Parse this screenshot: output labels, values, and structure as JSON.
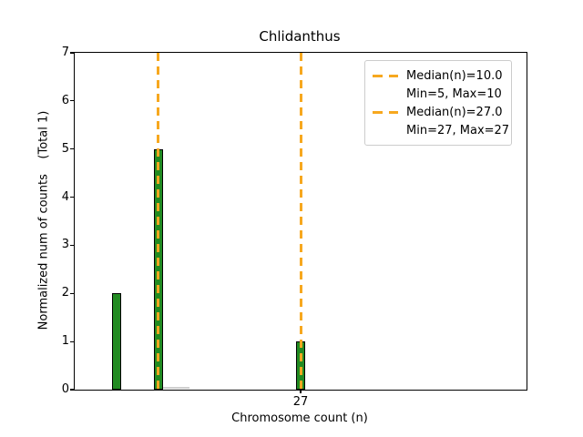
{
  "chart_data": {
    "type": "bar",
    "title": "Chlidanthus",
    "xlabel": "Chromosome count (n)",
    "ylabel": "Normalized num of counts    (Total 1)",
    "xlim": [
      0,
      54
    ],
    "ylim": [
      0,
      7
    ],
    "yticks": [
      0,
      1,
      2,
      3,
      4,
      5,
      6,
      7
    ],
    "xticks": [
      27
    ],
    "grid": false,
    "bars": [
      {
        "x": 5,
        "height": 2
      },
      {
        "x": 10,
        "height": 5
      },
      {
        "x": 27,
        "height": 1
      }
    ],
    "bar_color": "#228B22",
    "bar_edge_color": "#000000",
    "median_lines": [
      {
        "x": 10.0
      },
      {
        "x": 27.0
      }
    ],
    "line_color": "#f7a81f",
    "baseline_segment": {
      "from_n": 10.6,
      "to_n": 13.7
    },
    "legend": {
      "position": "upper right",
      "entries": [
        {
          "marker": "dashed-line",
          "label": "Median(n)=10.0"
        },
        {
          "marker": "none",
          "label": "Min=5, Max=10"
        },
        {
          "marker": "dashed-line",
          "label": "Median(n)=27.0"
        },
        {
          "marker": "none",
          "label": "Min=27, Max=27"
        }
      ]
    }
  }
}
